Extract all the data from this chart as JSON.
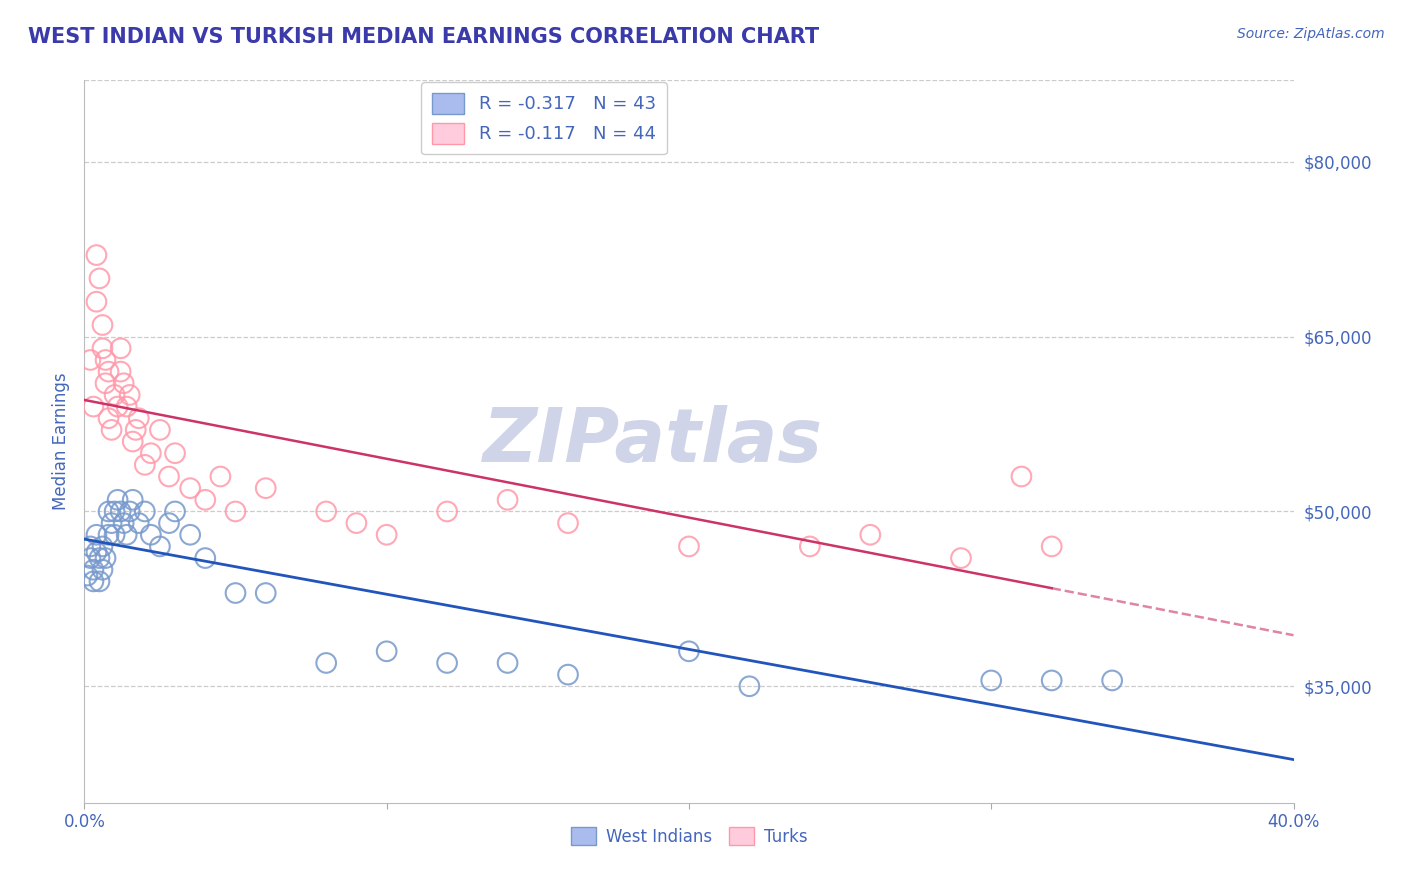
{
  "title": "WEST INDIAN VS TURKISH MEDIAN EARNINGS CORRELATION CHART",
  "source_text": "Source: ZipAtlas.com",
  "ylabel": "Median Earnings",
  "xlim": [
    0.0,
    0.4
  ],
  "ylim": [
    25000,
    87000
  ],
  "xticks": [
    0.0,
    0.1,
    0.2,
    0.3,
    0.4
  ],
  "xticklabels": [
    "0.0%",
    "",
    "",
    "",
    "40.0%"
  ],
  "yticks_right": [
    35000,
    50000,
    65000,
    80000
  ],
  "ytick_labels_right": [
    "$35,000",
    "$50,000",
    "$65,000",
    "$80,000"
  ],
  "title_color": "#3a3aaa",
  "axis_label_color": "#4466bb",
  "watermark": "ZIPatlas",
  "watermark_color": "#d0d4e8",
  "legend_r1": "R = -0.317   N = 43",
  "legend_r2": "R = -0.117   N = 44",
  "west_indians_color": "#7799cc",
  "turks_color": "#ff99aa",
  "west_indians_line_color": "#2255bb",
  "turks_line_color": "#cc3366",
  "west_indians_x": [
    0.001,
    0.002,
    0.002,
    0.003,
    0.003,
    0.004,
    0.004,
    0.005,
    0.005,
    0.006,
    0.006,
    0.007,
    0.008,
    0.008,
    0.009,
    0.01,
    0.01,
    0.011,
    0.012,
    0.013,
    0.014,
    0.015,
    0.016,
    0.018,
    0.02,
    0.022,
    0.025,
    0.028,
    0.03,
    0.035,
    0.04,
    0.05,
    0.06,
    0.08,
    0.1,
    0.12,
    0.14,
    0.16,
    0.2,
    0.22,
    0.3,
    0.32,
    0.34
  ],
  "west_indians_y": [
    44500,
    46000,
    47000,
    45000,
    44000,
    46500,
    48000,
    44000,
    46000,
    45000,
    47000,
    46000,
    48000,
    50000,
    49000,
    50000,
    48000,
    51000,
    50000,
    49000,
    48000,
    50000,
    51000,
    49000,
    50000,
    48000,
    47000,
    49000,
    50000,
    48000,
    46000,
    43000,
    43000,
    37000,
    38000,
    37000,
    37000,
    36000,
    38000,
    35000,
    35500,
    35500,
    35500
  ],
  "turks_x": [
    0.002,
    0.003,
    0.004,
    0.004,
    0.005,
    0.006,
    0.006,
    0.007,
    0.007,
    0.008,
    0.008,
    0.009,
    0.01,
    0.011,
    0.012,
    0.012,
    0.013,
    0.014,
    0.015,
    0.016,
    0.017,
    0.018,
    0.02,
    0.022,
    0.025,
    0.028,
    0.03,
    0.035,
    0.04,
    0.045,
    0.05,
    0.06,
    0.08,
    0.09,
    0.1,
    0.12,
    0.14,
    0.16,
    0.2,
    0.24,
    0.26,
    0.29,
    0.31,
    0.32
  ],
  "turks_y": [
    63000,
    59000,
    68000,
    72000,
    70000,
    66000,
    64000,
    61000,
    63000,
    62000,
    58000,
    57000,
    60000,
    59000,
    64000,
    62000,
    61000,
    59000,
    60000,
    56000,
    57000,
    58000,
    54000,
    55000,
    57000,
    53000,
    55000,
    52000,
    51000,
    53000,
    50000,
    52000,
    50000,
    49000,
    48000,
    50000,
    51000,
    49000,
    47000,
    47000,
    48000,
    46000,
    53000,
    47000
  ]
}
